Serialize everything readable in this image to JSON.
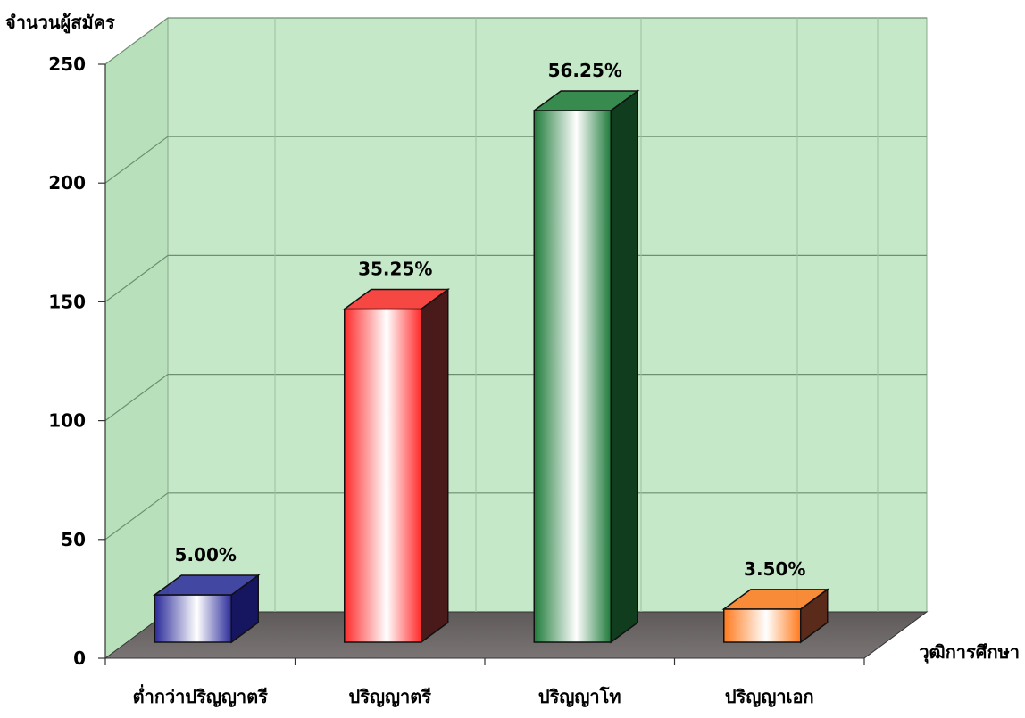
{
  "chart_data": {
    "type": "bar",
    "style": "3d",
    "ylabel": "จำนวนผู้สมัคร",
    "xlabel": "วุฒิการศึกษา",
    "categories": [
      "ต่ำกว่าปริญญาตรี",
      "ปริญญาตรี",
      "ปริญญาโท",
      "ปริญญาเอก"
    ],
    "values": [
      20,
      141,
      225,
      14
    ],
    "data_labels": [
      "5.00%",
      "35.25%",
      "56.25%",
      "3.50%"
    ],
    "ylim": [
      0,
      250
    ],
    "yticks": [
      0,
      50,
      100,
      150,
      200,
      250
    ],
    "grid": true,
    "legend": "none",
    "colors": {
      "back_wall": "#c5e8c8",
      "floor": "#6d6767",
      "bars": [
        "#2a2a9a",
        "#ff2a2a",
        "#1e7a3a",
        "#ff7a1e"
      ],
      "bar_sides": [
        "#151560",
        "#4a1a1a",
        "#0f3d1e",
        "#5a2a1a"
      ]
    }
  }
}
